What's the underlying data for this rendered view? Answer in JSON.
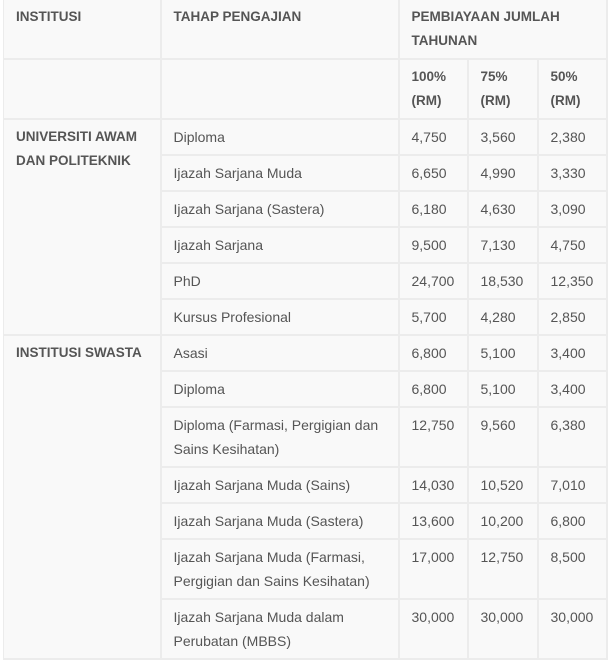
{
  "headers": {
    "institusi": "INSTITUSI",
    "tahap": "TAHAP PENGAJIAN",
    "pembiayaan": "PEMBIAYAAN JUMLAH TAHUNAN",
    "pct100": "100% (RM)",
    "pct75": "75% (RM)",
    "pct50": "50% (RM)"
  },
  "groups": [
    {
      "institusi": "UNIVERSITI AWAM DAN POLITEKNIK",
      "rows": [
        {
          "tahap": "Diploma",
          "v100": "4,750",
          "v75": "3,560",
          "v50": "2,380"
        },
        {
          "tahap": "Ijazah Sarjana Muda",
          "v100": "6,650",
          "v75": "4,990",
          "v50": "3,330"
        },
        {
          "tahap": "Ijazah Sarjana (Sastera)",
          "v100": "6,180",
          "v75": "4,630",
          "v50": "3,090"
        },
        {
          "tahap": "Ijazah Sarjana",
          "v100": "9,500",
          "v75": "7,130",
          "v50": "4,750"
        },
        {
          "tahap": "PhD",
          "v100": "24,700",
          "v75": "18,530",
          "v50": "12,350"
        },
        {
          "tahap": "Kursus Profesional",
          "v100": "5,700",
          "v75": "4,280",
          "v50": "2,850"
        }
      ]
    },
    {
      "institusi": "INSTITUSI SWASTA",
      "rows": [
        {
          "tahap": "Asasi",
          "v100": "6,800",
          "v75": "5,100",
          "v50": "3,400"
        },
        {
          "tahap": "Diploma",
          "v100": "6,800",
          "v75": "5,100",
          "v50": "3,400"
        },
        {
          "tahap": "Diploma (Farmasi, Pergigian dan Sains Kesihatan)",
          "v100": "12,750",
          "v75": "9,560",
          "v50": "6,380"
        },
        {
          "tahap": "Ijazah Sarjana Muda (Sains)",
          "v100": "14,030",
          "v75": "10,520",
          "v50": "7,010"
        },
        {
          "tahap": "Ijazah Sarjana Muda (Sastera)",
          "v100": "13,600",
          "v75": "10,200",
          "v50": "6,800"
        },
        {
          "tahap": "Ijazah Sarjana Muda (Farmasi, Pergigian dan Sains Kesihatan)",
          "v100": "17,000",
          "v75": "12,750",
          "v50": "8,500"
        },
        {
          "tahap": "Ijazah Sarjana Muda dalam Perubatan (MBBS)",
          "v100": "30,000",
          "v75": "30,000",
          "v50": "30,000"
        }
      ]
    }
  ]
}
